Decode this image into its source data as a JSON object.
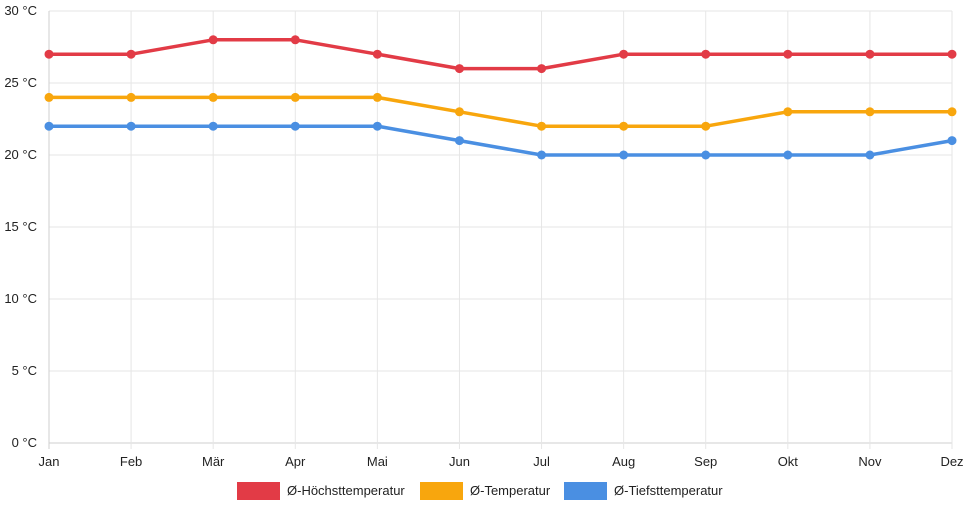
{
  "chart_data": {
    "type": "line",
    "categories": [
      "Jan",
      "Feb",
      "Mär",
      "Apr",
      "Mai",
      "Jun",
      "Jul",
      "Aug",
      "Sep",
      "Okt",
      "Nov",
      "Dez"
    ],
    "y_unit": "°C",
    "ylim": [
      0,
      30
    ],
    "y_ticks": [
      0,
      5,
      10,
      15,
      20,
      25,
      30
    ],
    "grid": true,
    "legend_position": "bottom",
    "series": [
      {
        "name": "Ø-Höchsttemperatur",
        "color": "#e23b46",
        "values": [
          27,
          27,
          28,
          28,
          27,
          26,
          26,
          27,
          27,
          27,
          27,
          27
        ]
      },
      {
        "name": "Ø-Temperatur",
        "color": "#f8a60d",
        "values": [
          24,
          24,
          24,
          24,
          24,
          23,
          22,
          22,
          22,
          23,
          23,
          23
        ]
      },
      {
        "name": "Ø-Tiefsttemperatur",
        "color": "#4a8fe2",
        "values": [
          22,
          22,
          22,
          22,
          22,
          21,
          20,
          20,
          20,
          20,
          20,
          21
        ]
      }
    ]
  }
}
